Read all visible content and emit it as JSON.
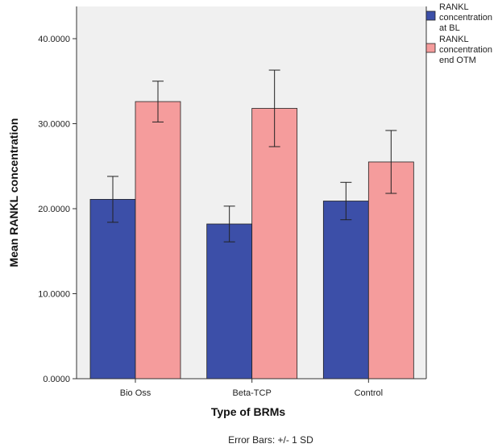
{
  "chart_data": {
    "type": "bar",
    "xlabel": "Type of BRMs",
    "ylabel": "Mean RANKL concentration",
    "ylim": [
      0,
      44
    ],
    "yticks": [
      0,
      10,
      20,
      30,
      40
    ],
    "ytick_labels": [
      "0.0000",
      "10.0000",
      "20.0000",
      "30.0000",
      "40.0000"
    ],
    "categories": [
      "Bio Oss",
      "Beta-TCP",
      "Control"
    ],
    "series": [
      {
        "name": "RANKL concentration at BL",
        "name_lines": [
          "RANKL",
          "concentration",
          "at BL"
        ],
        "color": "#3c4fa8",
        "values": [
          21.1,
          18.2,
          20.9
        ],
        "error": [
          2.7,
          2.1,
          2.2
        ]
      },
      {
        "name": "RANKL concentration end OTM",
        "name_lines": [
          "RANKL",
          "concentration",
          "end OTM"
        ],
        "color": "#f59c9c",
        "values": [
          32.6,
          31.8,
          25.5
        ],
        "error": [
          2.4,
          4.5,
          3.7
        ]
      }
    ],
    "grid": false,
    "legend_position": "top-right",
    "plot_background": "#f0f0f0",
    "footnote": "Error Bars: +/- 1 SD"
  }
}
